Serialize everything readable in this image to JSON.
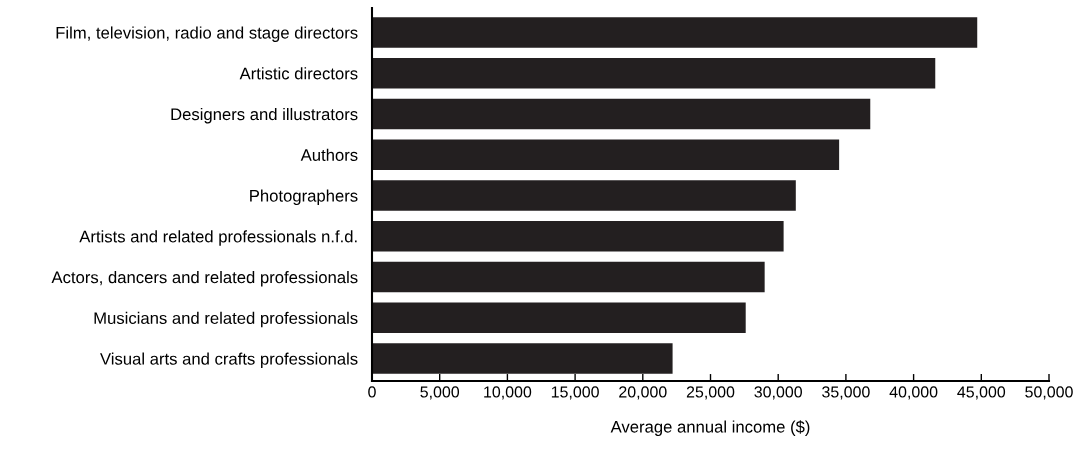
{
  "chart_data": {
    "type": "bar",
    "orientation": "horizontal",
    "xlabel": "Average annual income ($)",
    "categories": [
      "Film, television, radio and stage directors",
      "Artistic directors",
      "Designers and illustrators",
      "Authors",
      "Photographers",
      "Artists and related professionals n.f.d.",
      "Actors, dancers and related professionals",
      "Musicians and related professionals",
      "Visual arts and crafts professionals"
    ],
    "values": [
      44700,
      41600,
      36800,
      34500,
      31300,
      30400,
      29000,
      27600,
      22200
    ],
    "color": "#231f20",
    "xlim": [
      0,
      50000
    ],
    "xticks": [
      {
        "value": 0,
        "label": "0"
      },
      {
        "value": 5000,
        "label": "5,000"
      },
      {
        "value": 10000,
        "label": "10,000"
      },
      {
        "value": 15000,
        "label": "15,000"
      },
      {
        "value": 20000,
        "label": "20,000"
      },
      {
        "value": 25000,
        "label": "25,000"
      },
      {
        "value": 30000,
        "label": "30,000"
      },
      {
        "value": 35000,
        "label": "35,000"
      },
      {
        "value": 40000,
        "label": "40,000"
      },
      {
        "value": 45000,
        "label": "45,000"
      },
      {
        "value": 50000,
        "label": "50,000"
      }
    ],
    "grid": false
  }
}
